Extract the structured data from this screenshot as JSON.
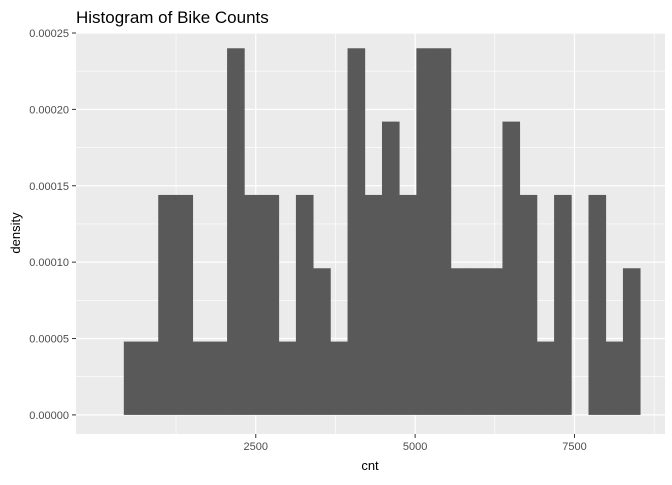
{
  "chart_data": {
    "type": "bar",
    "title": "Histogram of Bike Counts",
    "xlabel": "cnt",
    "ylabel": "density",
    "xlim": [
      -320,
      8920
    ],
    "ylim": [
      -1.25e-05,
      0.00025
    ],
    "x_ticks": [
      2500,
      5000,
      7500
    ],
    "x_tick_labels": [
      "2500",
      "5000",
      "7500"
    ],
    "y_ticks": [
      0,
      5e-05,
      0.0001,
      0.00015,
      0.0002,
      0.00025
    ],
    "y_tick_labels": [
      "0.00000",
      "0.00005",
      "0.00010",
      "0.00015",
      "0.00020",
      "0.00025"
    ],
    "grid": true,
    "bar_color": "#595959",
    "panel_color": "#ebebeb",
    "bins": [
      {
        "x0": 430,
        "x1": 700,
        "density": 4.8e-05
      },
      {
        "x0": 700,
        "x1": 970,
        "density": 4.8e-05
      },
      {
        "x0": 970,
        "x1": 1240,
        "density": 0.000144
      },
      {
        "x0": 1240,
        "x1": 1510,
        "density": 0.000144
      },
      {
        "x0": 1510,
        "x1": 1780,
        "density": 4.8e-05
      },
      {
        "x0": 1780,
        "x1": 2050,
        "density": 4.8e-05
      },
      {
        "x0": 2050,
        "x1": 2320,
        "density": 0.00024
      },
      {
        "x0": 2320,
        "x1": 2590,
        "density": 0.000144
      },
      {
        "x0": 2590,
        "x1": 2860,
        "density": 0.000144
      },
      {
        "x0": 2860,
        "x1": 3130,
        "density": 4.8e-05
      },
      {
        "x0": 3130,
        "x1": 3400,
        "density": 0.000144
      },
      {
        "x0": 3400,
        "x1": 3670,
        "density": 9.6e-05
      },
      {
        "x0": 3670,
        "x1": 3940,
        "density": 4.8e-05
      },
      {
        "x0": 3940,
        "x1": 4210,
        "density": 0.00024
      },
      {
        "x0": 4210,
        "x1": 4480,
        "density": 0.000144
      },
      {
        "x0": 4480,
        "x1": 4750,
        "density": 0.000192
      },
      {
        "x0": 4750,
        "x1": 5020,
        "density": 0.000144
      },
      {
        "x0": 5020,
        "x1": 5290,
        "density": 0.00024
      },
      {
        "x0": 5290,
        "x1": 5560,
        "density": 0.00024
      },
      {
        "x0": 5560,
        "x1": 5830,
        "density": 9.6e-05
      },
      {
        "x0": 5830,
        "x1": 6100,
        "density": 9.6e-05
      },
      {
        "x0": 6100,
        "x1": 6370,
        "density": 9.6e-05
      },
      {
        "x0": 6370,
        "x1": 6640,
        "density": 0.000192
      },
      {
        "x0": 6640,
        "x1": 6910,
        "density": 0.000144
      },
      {
        "x0": 6910,
        "x1": 7180,
        "density": 4.8e-05
      },
      {
        "x0": 7180,
        "x1": 7450,
        "density": 0.000144
      },
      {
        "x0": 7450,
        "x1": 7720,
        "density": 0
      },
      {
        "x0": 7720,
        "x1": 7990,
        "density": 0.000144
      },
      {
        "x0": 7990,
        "x1": 8260,
        "density": 4.8e-05
      },
      {
        "x0": 8260,
        "x1": 8530,
        "density": 9.6e-05
      }
    ]
  }
}
